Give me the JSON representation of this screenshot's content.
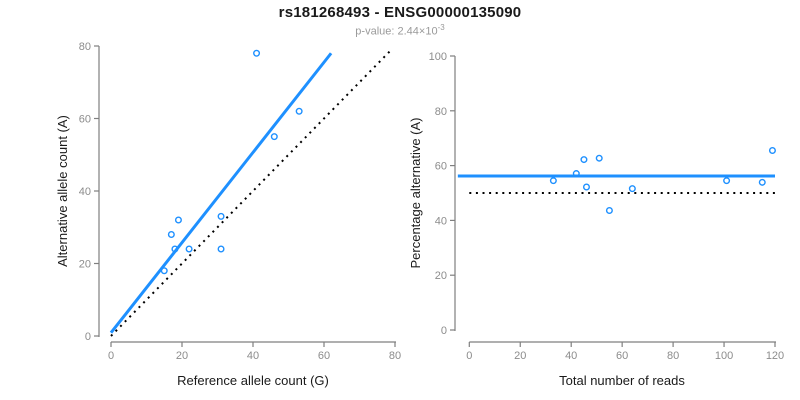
{
  "header": {
    "title": "rs181268493 - ENSG00000135090",
    "subtitle_prefix": "p-value: 2.44×10",
    "subtitle_exponent": "-3"
  },
  "colors": {
    "line_blue": "#1E90FF",
    "point_blue": "#1E90FF",
    "reference_black": "#000000",
    "axis_line": "#7f7f7f",
    "tick_label": "#8c8c8c",
    "axis_title": "#1a1a1a"
  },
  "chart_data": [
    {
      "id": "allele-counts-scatter",
      "type": "scatter",
      "xlabel": "Reference allele count (G)",
      "ylabel": "Alternative allele count (A)",
      "xlim": [
        0,
        80
      ],
      "ylim": [
        0,
        80
      ],
      "xticks": [
        0,
        20,
        40,
        60,
        80
      ],
      "yticks": [
        0,
        20,
        40,
        60,
        80
      ],
      "grid": false,
      "legend": "none",
      "points": [
        [
          15,
          18
        ],
        [
          17,
          28
        ],
        [
          18,
          24
        ],
        [
          19,
          32
        ],
        [
          22,
          24
        ],
        [
          31,
          24
        ],
        [
          31,
          33
        ],
        [
          41,
          78
        ],
        [
          46,
          55
        ],
        [
          53,
          62
        ]
      ],
      "lines": [
        {
          "name": "fit-line",
          "style": "solid",
          "color_key": "line_blue",
          "x1": 0,
          "y1": 0.9,
          "x2": 62,
          "y2": 78
        },
        {
          "name": "identity-line",
          "style": "dotted",
          "color_key": "reference_black",
          "x1": 0,
          "y1": 0,
          "x2": 78.6,
          "y2": 78.6
        }
      ]
    },
    {
      "id": "percentage-vs-coverage-scatter",
      "type": "scatter",
      "xlabel": "Total number of reads",
      "ylabel": "Percentage alternative (A)",
      "xlim": [
        0,
        120
      ],
      "ylim": [
        0,
        100
      ],
      "xticks": [
        0,
        20,
        40,
        60,
        80,
        100,
        120
      ],
      "yticks": [
        0,
        20,
        40,
        60,
        80,
        100
      ],
      "grid": false,
      "legend": "none",
      "points": [
        [
          33,
          54.5
        ],
        [
          42,
          57.1
        ],
        [
          45,
          62.2
        ],
        [
          46,
          52.2
        ],
        [
          51,
          62.7
        ],
        [
          55,
          43.6
        ],
        [
          64,
          51.6
        ],
        [
          101,
          54.5
        ],
        [
          115,
          53.9
        ],
        [
          119,
          65.5
        ]
      ],
      "lines": [
        {
          "name": "mean-percentage-line",
          "style": "solid",
          "color_key": "line_blue",
          "x1": -4.5,
          "y1": 56.2,
          "x2": 120,
          "y2": 56.2
        },
        {
          "name": "fifty-percent-line",
          "style": "dotted",
          "color_key": "reference_black",
          "x1": 0,
          "y1": 50,
          "x2": 120,
          "y2": 50
        }
      ]
    }
  ]
}
